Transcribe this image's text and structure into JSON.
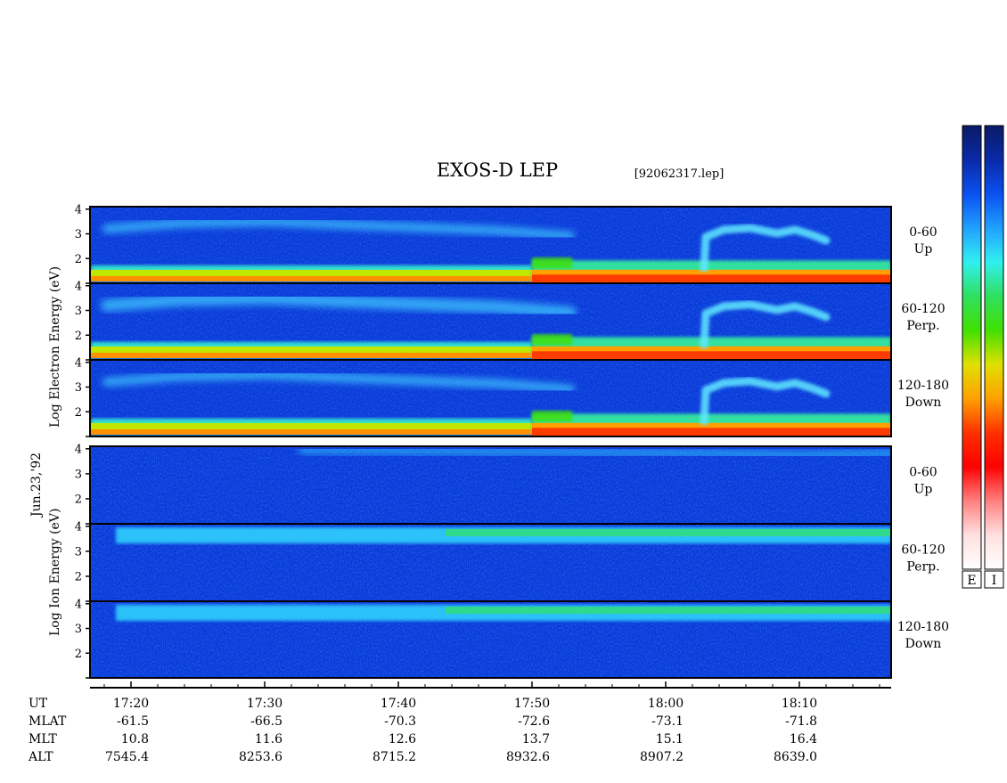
{
  "title": "EXOS-D LEP",
  "file_label": "[92062317.lep]",
  "date_label": "Jun.23,'92",
  "colors": {
    "colorbar_gradient": [
      "#0a1a66",
      "#0a2aa8",
      "#0a50f0",
      "#20a0ff",
      "#30f0f0",
      "#30e060",
      "#40e000",
      "#e0e000",
      "#ffa000",
      "#ff3000",
      "#ff0000",
      "#ff8080",
      "#ffe0e0",
      "#ffffff"
    ]
  },
  "colorbar_labels": [
    "E",
    "I"
  ],
  "electron": {
    "ylabel": "Log Electron Energy (eV)",
    "panels": [
      {
        "label": [
          "0-60",
          "Up"
        ],
        "yticks": [
          "4",
          "3",
          "2"
        ]
      },
      {
        "label": [
          "60-120",
          "Perp."
        ],
        "yticks": [
          "4",
          "3",
          "2"
        ]
      },
      {
        "label": [
          "120-180",
          "Down"
        ],
        "yticks": [
          "4",
          "3",
          "2"
        ]
      }
    ]
  },
  "ion": {
    "ylabel": "Log Ion Energy (eV)",
    "panels": [
      {
        "label": [
          "0-60",
          "Up"
        ],
        "yticks": [
          "4",
          "3",
          "2"
        ]
      },
      {
        "label": [
          "60-120",
          "Perp."
        ],
        "yticks": [
          "4",
          "3",
          "2"
        ]
      },
      {
        "label": [
          "120-180",
          "Down"
        ],
        "yticks": [
          "4",
          "3",
          "2"
        ]
      }
    ]
  },
  "ephemeris": {
    "row_labels": [
      "UT",
      "MLAT",
      "MLT",
      "ALT"
    ],
    "UT": [
      "17:20",
      "17:30",
      "17:40",
      "17:50",
      "18:00",
      "18:10"
    ],
    "MLAT": [
      "-61.5",
      "-66.5",
      "-70.3",
      "-72.6",
      "-73.1",
      "-71.8"
    ],
    "MLT": [
      "10.8",
      "11.6",
      "12.6",
      "13.7",
      "15.1",
      "16.4"
    ],
    "ALT": [
      "7545.4",
      "8253.6",
      "8715.2",
      "8932.6",
      "8907.2",
      "8639.0"
    ]
  },
  "chart_data": {
    "type": "heatmap",
    "title": "EXOS-D LEP",
    "x": [
      "17:20",
      "17:30",
      "17:40",
      "17:50",
      "18:00",
      "18:10"
    ],
    "xlim": [
      "17:17",
      "18:17"
    ],
    "ylim": [
      1,
      4.1
    ],
    "ylabel_electron": "Log Electron Energy (eV)",
    "ylabel_ion": "Log Ion Energy (eV)",
    "series": [
      {
        "name": "Electron 0-60 Up"
      },
      {
        "name": "Electron 60-120 Perp."
      },
      {
        "name": "Electron 120-180 Down"
      },
      {
        "name": "Ion 0-60 Up"
      },
      {
        "name": "Ion 60-120 Perp."
      },
      {
        "name": "Ion 120-180 Down"
      }
    ]
  }
}
